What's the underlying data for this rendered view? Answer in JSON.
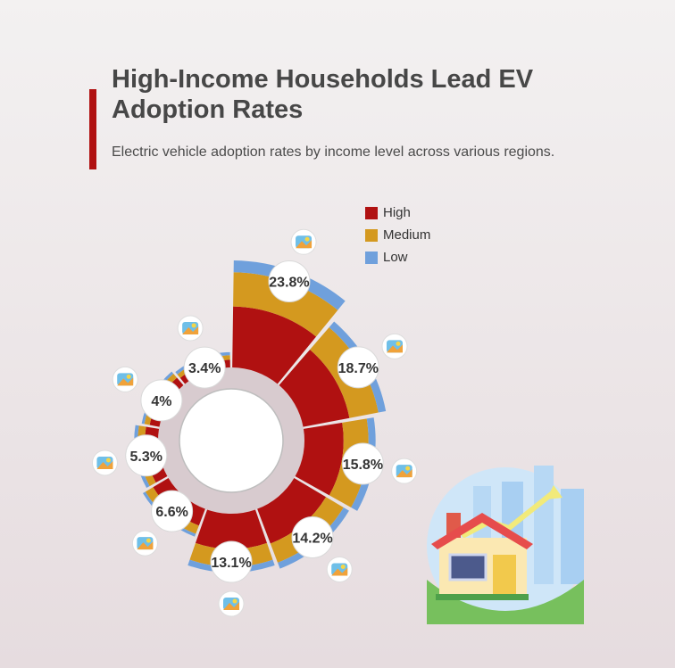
{
  "header": {
    "title": "High-Income Households Lead EV Adoption Rates",
    "subtitle": "Electric vehicle adoption rates by income level across various regions."
  },
  "colors": {
    "high": "#b01111",
    "medium": "#d4991f",
    "low": "#6fa0dc",
    "accent": "#b01111"
  },
  "chart_data": {
    "type": "polar-stacked-bar",
    "title": "High-Income Households Lead EV Adoption Rates",
    "subtitle": "Electric vehicle adoption rates by income level across various regions.",
    "legend": {
      "position": "top-right",
      "entries": [
        "High",
        "Medium",
        "Low"
      ]
    },
    "categories": [
      {
        "icon": "beach-sunset-icon",
        "percent": 23.8,
        "label": "23.8%",
        "high": 0.57,
        "medium": 0.32,
        "low": 0.11
      },
      {
        "icon": "map-pin-landscape-icon",
        "percent": 18.7,
        "label": "18.7%",
        "high": 0.56,
        "medium": 0.35,
        "low": 0.09
      },
      {
        "icon": "state-map-icon",
        "percent": 15.8,
        "label": "15.8%",
        "high": 0.55,
        "medium": 0.35,
        "low": 0.1
      },
      {
        "icon": "house-flood-icon",
        "percent": 14.2,
        "label": "14.2%",
        "high": 0.58,
        "medium": 0.32,
        "low": 0.1
      },
      {
        "icon": "desert-mesa-icon",
        "percent": 13.1,
        "label": "13.1%",
        "high": 0.6,
        "medium": 0.3,
        "low": 0.1
      },
      {
        "icon": "green-fields-icon",
        "percent": 6.6,
        "label": "6.6%",
        "high": 0.6,
        "medium": 0.3,
        "low": 0.1
      },
      {
        "icon": "texas-pin-icon",
        "percent": 5.3,
        "label": "5.3%",
        "high": 0.55,
        "medium": 0.3,
        "low": 0.15
      },
      {
        "icon": "georgia-flag-icon",
        "percent": 4,
        "label": "4%",
        "high": 0.55,
        "medium": 0.3,
        "low": 0.15
      },
      {
        "icon": "lake-landscape-icon",
        "percent": 3.4,
        "label": "3.4%",
        "high": 0.5,
        "medium": 0.3,
        "low": 0.2
      }
    ]
  },
  "illustration": {
    "icon": "house-growth-icon"
  }
}
